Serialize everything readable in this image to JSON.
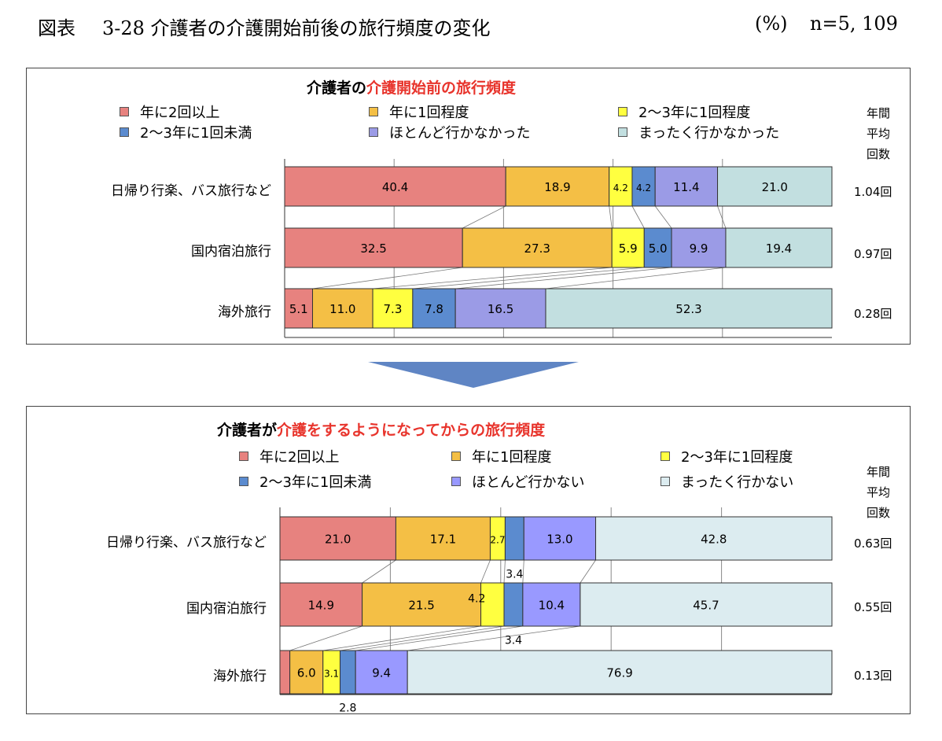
{
  "header": {
    "fig_label": "図表",
    "fig_title": "3-28 介護者の介護開始前後の旅行頻度の変化",
    "unit": "(%)",
    "n": "n=5, 109"
  },
  "colors": {
    "c0": "#e7827f",
    "c1": "#f4bf45",
    "c2": "#ffff40",
    "c3": "#5b8bcf",
    "c4": "#9b9be6",
    "c5": "#c2dfe0",
    "c4b": "#9999ff",
    "c5b": "#dcecf0",
    "arrow": "#5f85c4"
  },
  "annual_header": "年間\n平均\n回数",
  "panels": [
    {
      "title_black": "介護者の",
      "title_red": "介護開始前の旅行頻度",
      "legend": [
        "年に2回以上",
        "年に1回程度",
        "2～3年に1回程度",
        "2～3年に1回未満",
        "ほとんど行かなかった",
        "まったく行かなかった"
      ],
      "rows": [
        {
          "label": "日帰り行楽、バス旅行など",
          "annual": "1.04回"
        },
        {
          "label": "国内宿泊旅行",
          "annual": "0.97回"
        },
        {
          "label": "海外旅行",
          "annual": "0.28回"
        }
      ]
    },
    {
      "title_black": "介護者が",
      "title_red": "介護をするようになってからの旅行頻度",
      "legend": [
        "年に2回以上",
        "年に1回程度",
        "2～3年に1回程度",
        "2～3年に1回未満",
        "ほとんど行かない",
        "まったく行かない"
      ],
      "rows": [
        {
          "label": "日帰り行楽、バス旅行など",
          "annual": "0.63回"
        },
        {
          "label": "国内宿泊旅行",
          "annual": "0.55回"
        },
        {
          "label": "海外旅行",
          "annual": "0.13回"
        }
      ]
    }
  ],
  "chart_data": [
    {
      "type": "bar",
      "stacked": true,
      "orientation": "horizontal",
      "title": "介護者の介護開始前の旅行頻度",
      "categories": [
        "日帰り行楽、バス旅行など",
        "国内宿泊旅行",
        "海外旅行"
      ],
      "series": [
        {
          "name": "年に2回以上",
          "values": [
            40.4,
            32.5,
            5.1
          ]
        },
        {
          "name": "年に1回程度",
          "values": [
            18.9,
            27.3,
            11.0
          ]
        },
        {
          "name": "2～3年に1回程度",
          "values": [
            4.2,
            5.9,
            7.3
          ]
        },
        {
          "name": "2～3年に1回未満",
          "values": [
            4.2,
            5.0,
            7.8
          ]
        },
        {
          "name": "ほとんど行かなかった",
          "values": [
            11.4,
            9.9,
            16.5
          ]
        },
        {
          "name": "まったく行かなかった",
          "values": [
            21.0,
            19.4,
            52.3
          ]
        }
      ],
      "labels": [
        [
          "40.4",
          "18.9",
          "4.2",
          "4.2",
          "11.4",
          "21.0"
        ],
        [
          "32.5",
          "27.3",
          "5.9",
          "5.0",
          "9.9",
          "19.4"
        ],
        [
          "5.1",
          "11.0",
          "7.3",
          "7.8",
          "16.5",
          "52.3"
        ]
      ],
      "xlim": [
        0,
        100
      ]
    },
    {
      "type": "bar",
      "stacked": true,
      "orientation": "horizontal",
      "title": "介護者が介護をするようになってからの旅行頻度",
      "categories": [
        "日帰り行楽、バス旅行など",
        "国内宿泊旅行",
        "海外旅行"
      ],
      "series": [
        {
          "name": "年に2回以上",
          "values": [
            21.0,
            14.9,
            1.8
          ]
        },
        {
          "name": "年に1回程度",
          "values": [
            17.1,
            21.5,
            6.0
          ]
        },
        {
          "name": "2～3年に1回程度",
          "values": [
            2.7,
            4.2,
            3.1
          ]
        },
        {
          "name": "2～3年に1回未満",
          "values": [
            3.4,
            3.4,
            2.8
          ]
        },
        {
          "name": "ほとんど行かない",
          "values": [
            13.0,
            10.4,
            9.4
          ]
        },
        {
          "name": "まったく行かない",
          "values": [
            42.8,
            45.7,
            76.9
          ]
        }
      ],
      "labels": [
        [
          "21.0",
          "17.1",
          "2.7",
          "3.4",
          "13.0",
          "42.8"
        ],
        [
          "14.9",
          "21.5",
          "4.2",
          "3.4",
          "10.4",
          "45.7"
        ],
        [
          "",
          "6.0",
          "3.1",
          "2.8",
          "9.4",
          "76.9"
        ]
      ],
      "xlim": [
        0,
        100
      ]
    }
  ]
}
